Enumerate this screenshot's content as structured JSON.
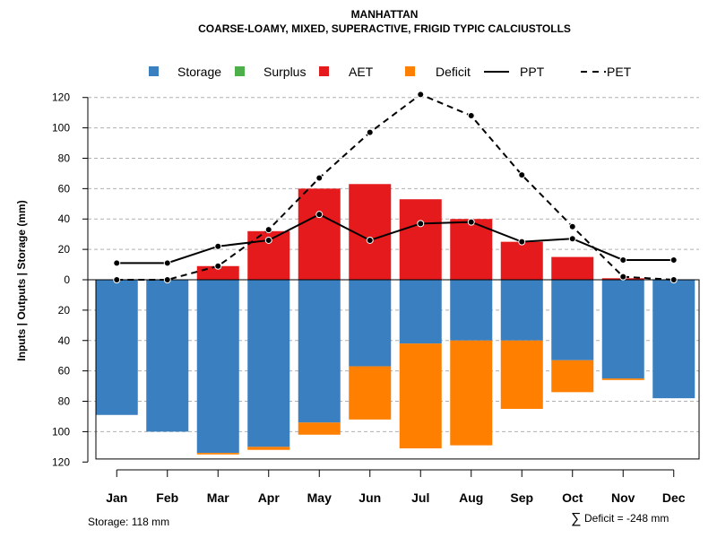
{
  "chart_data": {
    "type": "bar",
    "title": "MANHATTAN",
    "subtitle": "COARSE-LOAMY, MIXED, SUPERACTIVE, FRIGID TYPIC CALCIUSTOLLS",
    "ylabel": "Inputs | Outputs | Storage    (mm)",
    "ylim": [
      -120,
      130
    ],
    "yticks": [
      120,
      100,
      80,
      60,
      40,
      20,
      0,
      20,
      40,
      60,
      80,
      100,
      120
    ],
    "categories": [
      "Jan",
      "Feb",
      "Mar",
      "Apr",
      "May",
      "Jun",
      "Jul",
      "Aug",
      "Sep",
      "Oct",
      "Nov",
      "Dec"
    ],
    "legend": [
      {
        "name": "Storage",
        "kind": "box",
        "color": "#3a7fbf"
      },
      {
        "name": "Surplus",
        "kind": "box",
        "color": "#4daf4a"
      },
      {
        "name": "AET",
        "kind": "box",
        "color": "#e41a1c"
      },
      {
        "name": "Deficit",
        "kind": "box",
        "color": "#ff7f00"
      },
      {
        "name": "PPT",
        "kind": "solid",
        "color": "#000000"
      },
      {
        "name": "PET",
        "kind": "dashed",
        "color": "#000000"
      }
    ],
    "series": [
      {
        "name": "AET",
        "values": [
          0,
          0,
          9,
          32,
          60,
          63,
          53,
          40,
          25,
          15,
          1,
          0
        ]
      },
      {
        "name": "Storage",
        "values": [
          89,
          100,
          114,
          110,
          94,
          57,
          42,
          40,
          40,
          53,
          65,
          78
        ]
      },
      {
        "name": "Deficit",
        "values": [
          0,
          0,
          1,
          2,
          8,
          35,
          69,
          69,
          45,
          21,
          1,
          0
        ]
      },
      {
        "name": "Surplus",
        "values": [
          0,
          0,
          0,
          0,
          0,
          0,
          0,
          0,
          0,
          0,
          0,
          0
        ]
      },
      {
        "name": "PPT",
        "values": [
          11,
          11,
          22,
          26,
          43,
          26,
          37,
          38,
          25,
          27,
          13,
          13
        ]
      },
      {
        "name": "PET",
        "values": [
          0,
          0,
          9,
          33,
          67,
          97,
          122,
          108,
          69,
          35,
          2,
          0
        ]
      }
    ],
    "storage_capacity": 118,
    "storage_note": "Storage: 118 mm",
    "deficit_note": "Deficit = -248 mm",
    "sum_symbol": "∑"
  }
}
